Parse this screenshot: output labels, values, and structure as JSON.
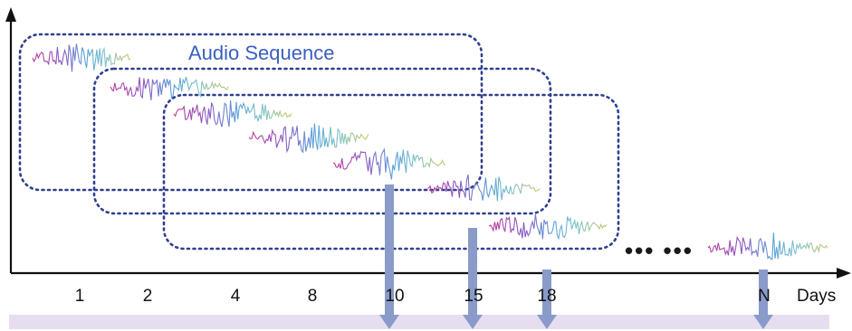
{
  "title": "Audio Sequence",
  "x_axis": {
    "ticks": [
      "1",
      "2",
      "4",
      "8",
      "10",
      "15",
      "18",
      "N"
    ],
    "unit_label": "Days"
  },
  "ellipsis": "•••  •••",
  "colors": {
    "box_border": "#2f3f8f",
    "title": "#3b5fc0",
    "arrow": "#8a9bc9",
    "band": "#e6def0",
    "axis": "#111111",
    "wave_gradient": [
      "#c0399a",
      "#8a5cc4",
      "#5aa3d8",
      "#7fc4c9",
      "#c9c86a"
    ]
  },
  "recordings": [
    {
      "day": "1"
    },
    {
      "day": "2"
    },
    {
      "day": "4"
    },
    {
      "day": "8"
    },
    {
      "day": "10"
    },
    {
      "day": "15"
    },
    {
      "day": "18"
    },
    {
      "day": "N"
    }
  ],
  "windows": [
    {
      "name": "sequence-window-1",
      "ends_at_day": "10"
    },
    {
      "name": "sequence-window-2",
      "ends_at_day": "15"
    },
    {
      "name": "sequence-window-3",
      "ends_at_day": "18"
    }
  ],
  "prediction_arrows": [
    {
      "day": "10"
    },
    {
      "day": "15"
    },
    {
      "day": "18"
    },
    {
      "day": "N"
    }
  ]
}
